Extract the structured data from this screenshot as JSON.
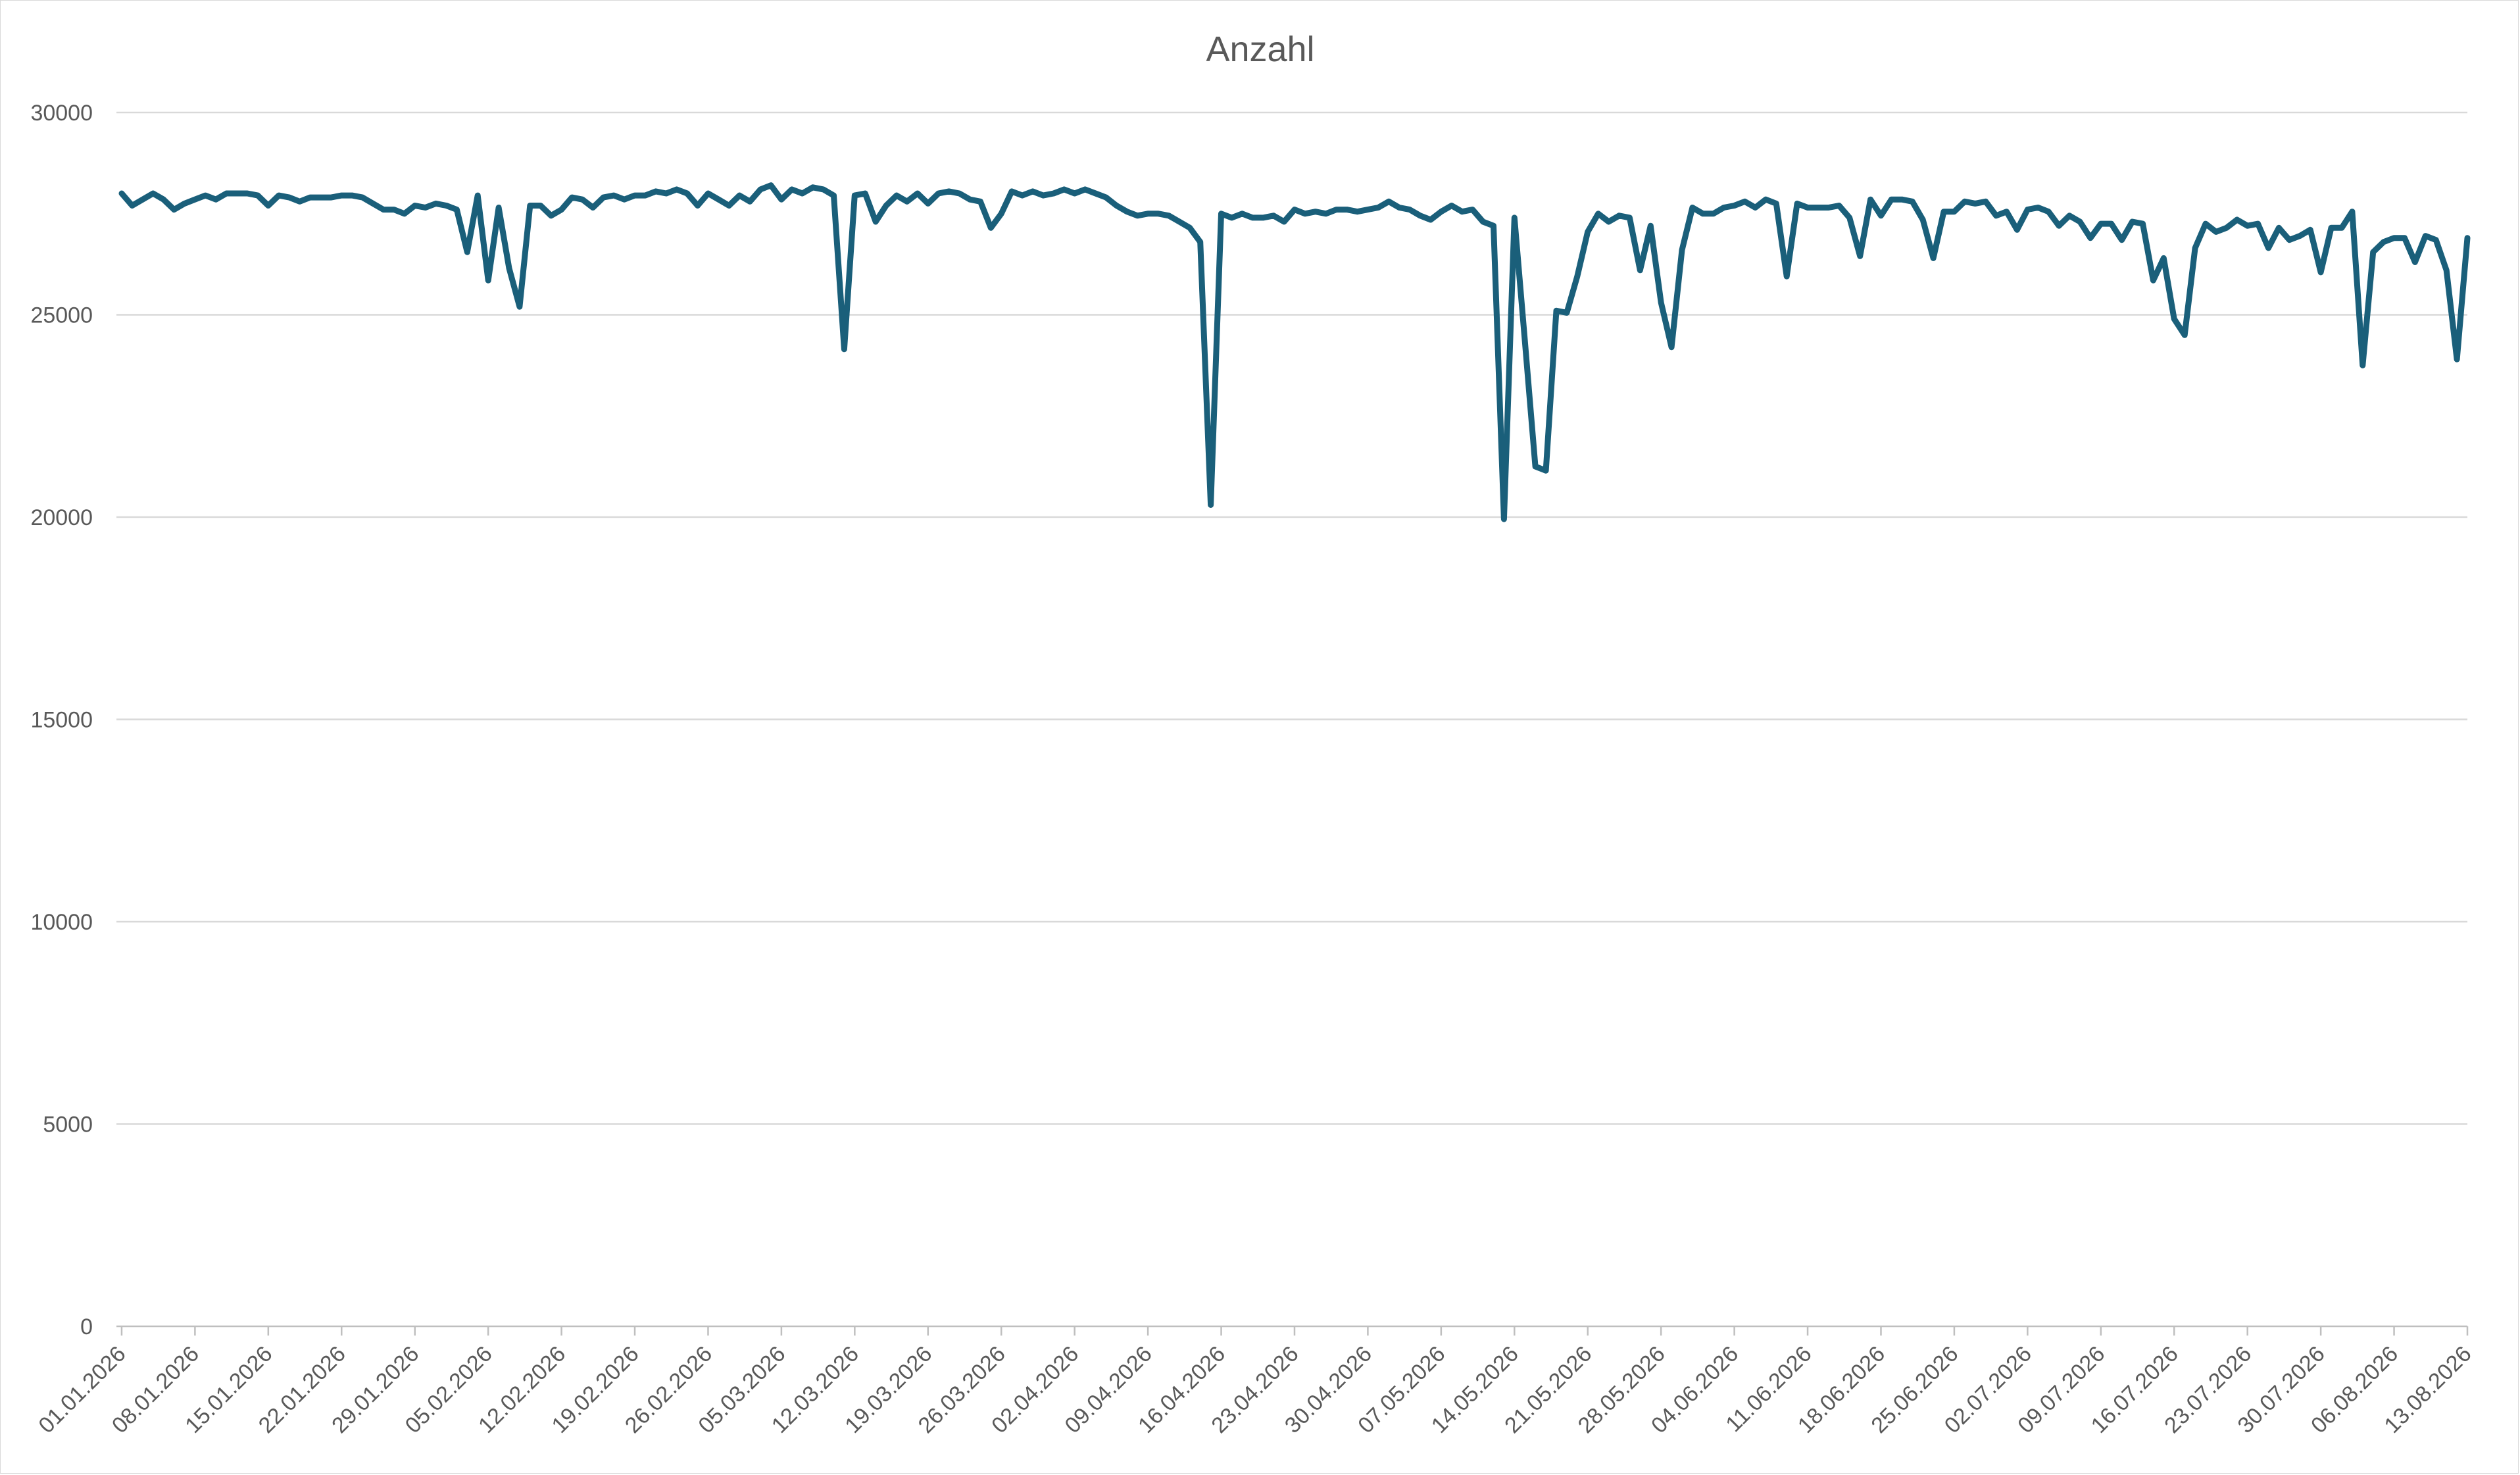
{
  "chart_data": {
    "type": "line",
    "title": "Anzahl",
    "xlabel": "",
    "ylabel": "",
    "ylim": [
      0,
      30000
    ],
    "yticks": [
      "0",
      "5000",
      "10000",
      "15000",
      "20000",
      "25000",
      "30000"
    ],
    "ytick_values": [
      0,
      5000,
      10000,
      15000,
      20000,
      25000,
      30000
    ],
    "grid": true,
    "legend": "none",
    "colors": {
      "series": "#1a5f7a",
      "grid": "#d9d9d9",
      "text": "#595959"
    },
    "xtick_labels": [
      "01.01.2026",
      "08.01.2026",
      "15.01.2026",
      "22.01.2026",
      "29.01.2026",
      "05.02.2026",
      "12.02.2026",
      "19.02.2026",
      "26.02.2026",
      "05.03.2026",
      "12.03.2026",
      "19.03.2026",
      "26.03.2026",
      "02.04.2026",
      "09.04.2026",
      "16.04.2026",
      "23.04.2026",
      "30.04.2026",
      "07.05.2026",
      "14.05.2026",
      "21.05.2026",
      "28.05.2026",
      "04.06.2026",
      "11.06.2026",
      "18.06.2026",
      "25.06.2026",
      "02.07.2026",
      "09.07.2026",
      "16.07.2026",
      "23.07.2026",
      "30.07.2026",
      "06.08.2026",
      "13.08.2026"
    ],
    "x_start": "01.01.2026",
    "x_end": "14.08.2026",
    "series": [
      {
        "values": [
          28000,
          27700,
          27850,
          28000,
          27850,
          27600,
          27750,
          27850,
          27950,
          27850,
          28000,
          28000,
          28000,
          27950,
          27700,
          27950,
          27900,
          27800,
          27900,
          27900,
          27900,
          27950,
          27950,
          27900,
          27750,
          27600,
          27600,
          27500,
          27700,
          27650,
          27750,
          27700,
          27600,
          26550,
          27950,
          25850,
          27650,
          26150,
          25200,
          27700,
          27700,
          27450,
          27600,
          27900,
          27850,
          27650,
          27900,
          27950,
          27850,
          27950,
          27950,
          28050,
          28000,
          28100,
          28000,
          27700,
          28000,
          27850,
          27700,
          27950,
          27800,
          28100,
          28200,
          27850,
          28100,
          28000,
          28150,
          28100,
          27950,
          24150,
          27950,
          28000,
          27300,
          27700,
          27950,
          27800,
          28000,
          27750,
          28000,
          28050,
          28000,
          27850,
          27800,
          27150,
          27500,
          28050,
          27950,
          28050,
          27950,
          28000,
          28100,
          28000,
          28100,
          28000,
          27900,
          27700,
          27550,
          27450,
          27500,
          27500,
          27450,
          27300,
          27150,
          26800,
          20300,
          27500,
          27400,
          27500,
          27400,
          27400,
          27450,
          27300,
          27600,
          27500,
          27550,
          27500,
          27600,
          27600,
          27550,
          27600,
          27650,
          27800,
          27650,
          27600,
          27450,
          27350,
          27550,
          27700,
          27550,
          27600,
          27300,
          27200,
          19950,
          27400,
          24350,
          21250,
          21150,
          25100,
          25050,
          25950,
          27050,
          27500,
          27300,
          27450,
          27400,
          26100,
          27200,
          25300,
          24200,
          26600,
          27650,
          27500,
          27500,
          27650,
          27700,
          27800,
          27650,
          27850,
          27750,
          25950,
          27750,
          27650,
          27650,
          27650,
          27700,
          27400,
          26450,
          27850,
          27450,
          27850,
          27850,
          27800,
          27350,
          26400,
          27550,
          27550,
          27800,
          27750,
          27800,
          27450,
          27550,
          27100,
          27600,
          27650,
          27550,
          27200,
          27450,
          27300,
          26900,
          27250,
          27250,
          26850,
          27300,
          27250,
          25850,
          26400,
          24900,
          24500,
          26650,
          27250,
          27050,
          27150,
          27350,
          27200,
          27250,
          26650,
          27150,
          26850,
          26950,
          27100,
          26050,
          27150,
          27150,
          27550,
          23750,
          26550,
          26800,
          26900,
          26900,
          26300,
          26950,
          26850,
          26100,
          23900,
          26900
        ]
      }
    ]
  }
}
